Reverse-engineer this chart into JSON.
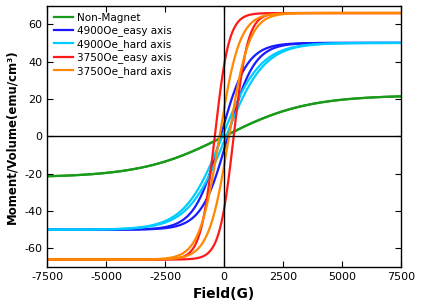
{
  "title": "",
  "xlabel": "Field(G)",
  "ylabel": "Moment/Volume(emu/cm³)",
  "xlim": [
    -7500,
    7500
  ],
  "ylim": [
    -70,
    70
  ],
  "xticks": [
    -7500,
    -5000,
    -2500,
    0,
    2500,
    5000,
    7500
  ],
  "yticks": [
    -60,
    -40,
    -20,
    0,
    20,
    40,
    60
  ],
  "legend": [
    {
      "label": "Non-Magnet",
      "color": "#1a9a1a",
      "Ms": 22,
      "steep": 3500,
      "Hc": 0
    },
    {
      "label": "4900Oe_easy axis",
      "color": "#1a1aff",
      "Ms": 50,
      "steep": 1100,
      "Hc": 150
    },
    {
      "label": "4900Oe_hard axis",
      "color": "#00ccff",
      "Ms": 50,
      "steep": 1600,
      "Hc": 80
    },
    {
      "label": "3750Oe_easy axis",
      "color": "#ff1a1a",
      "Ms": 66,
      "steep": 600,
      "Hc": 400
    },
    {
      "label": "3750Oe_hard axis",
      "color": "#ff8800",
      "Ms": 66,
      "steep": 850,
      "Hc": 200
    }
  ],
  "background_color": "#ffffff",
  "linewidth": 1.6,
  "axline_lw": 1.0,
  "legend_fontsize": 7.5,
  "xlabel_fontsize": 10,
  "ylabel_fontsize": 8.5,
  "tick_labelsize": 8
}
